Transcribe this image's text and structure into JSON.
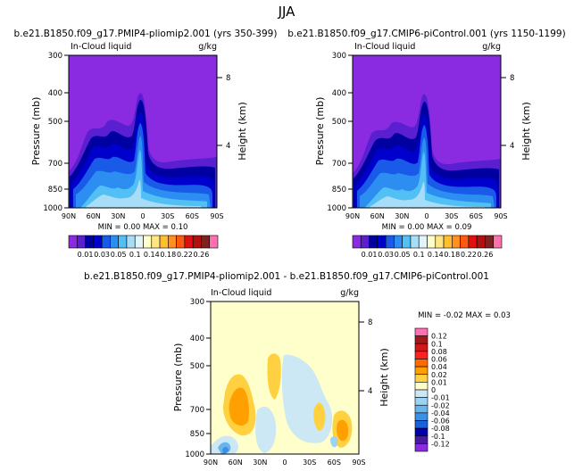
{
  "season": "JJA",
  "panels": [
    {
      "title": "b.e21.B1850.f09_g17.PMIP4-pliomip2.001  (yrs 350-399)",
      "field": "In-Cloud liquid",
      "units": "g/kg",
      "stats": "MIN =    0.00   MAX =    0.10"
    },
    {
      "title": "b.e21.B1850.f09_g17.CMIP6-piControl.001  (yrs 1150-1199)",
      "field": "In-Cloud liquid",
      "units": "g/kg",
      "stats": "MIN =    0.00   MAX =    0.09"
    },
    {
      "title": "b.e21.B1850.f09_g17.PMIP4-pliomip2.001  -  b.e21.B1850.f09_g17.CMIP6-piControl.001",
      "field": "In-Cloud liquid",
      "units": "g/kg",
      "stats": "MIN =   -0.02   MAX =    0.03"
    }
  ],
  "axis_labels": {
    "left": "Pressure (mb)",
    "right": "Height (km)"
  },
  "pressure_ticks": [
    "300",
    "400",
    "500",
    "700",
    "850",
    "1000"
  ],
  "lat_ticks": [
    "90N",
    "60N",
    "30N",
    "0",
    "30S",
    "60S",
    "90S"
  ],
  "height_ticks": [
    "8",
    "4"
  ],
  "abs_colorbar": {
    "labels": [
      "0.01",
      "0.03",
      "0.05",
      "0.1",
      "0.14",
      "0.18",
      "0.22",
      "0.26"
    ],
    "colors": [
      "#8a2be2",
      "#5a1fd0",
      "#0000a0",
      "#0000cd",
      "#1a5ae8",
      "#2c8ef0",
      "#52c0f5",
      "#a8ddf8",
      "#e0f4fa",
      "#ffffcc",
      "#ffe680",
      "#ffc030",
      "#ff9020",
      "#ff5a10",
      "#e01010",
      "#b01010",
      "#802020",
      "#ff70b0"
    ]
  },
  "diff_colorbar": {
    "labels": [
      "0.12",
      "0.1",
      "0.08",
      "0.06",
      "0.04",
      "0.02",
      "0.01",
      "0",
      "-0.01",
      "-0.02",
      "-0.04",
      "-0.06",
      "-0.08",
      "-0.1",
      "-0.12"
    ],
    "colors": [
      "#ff70b0",
      "#a01818",
      "#d01818",
      "#ff2020",
      "#ff6a00",
      "#ffa000",
      "#ffd040",
      "#ffffcc",
      "#cce8f4",
      "#9cd2f2",
      "#6ab4ee",
      "#3a90e6",
      "#1a60d8",
      "#0000b0",
      "#4a1aa0",
      "#8a2be2"
    ]
  },
  "chart_data": [
    {
      "type": "heatmap",
      "title": "b.e21.B1850.f09_g17.PMIP4-pliomip2.001 (yrs 350-399)",
      "variable": "In-Cloud liquid (g/kg)",
      "season": "JJA",
      "x": "latitude 90N to 90S",
      "y": "pressure 1000 to 300 mb",
      "min": 0.0,
      "max": 0.1
    },
    {
      "type": "heatmap",
      "title": "b.e21.B1850.f09_g17.CMIP6-piControl.001 (yrs 1150-1199)",
      "variable": "In-Cloud liquid (g/kg)",
      "season": "JJA",
      "x": "latitude 90N to 90S",
      "y": "pressure 1000 to 300 mb",
      "min": 0.0,
      "max": 0.09
    },
    {
      "type": "heatmap",
      "title": "PMIP4-pliomip2.001 - CMIP6-piControl.001",
      "variable": "In-Cloud liquid difference (g/kg)",
      "season": "JJA",
      "x": "latitude 90N to 90S",
      "y": "pressure 1000 to 300 mb",
      "min": -0.02,
      "max": 0.03
    }
  ]
}
